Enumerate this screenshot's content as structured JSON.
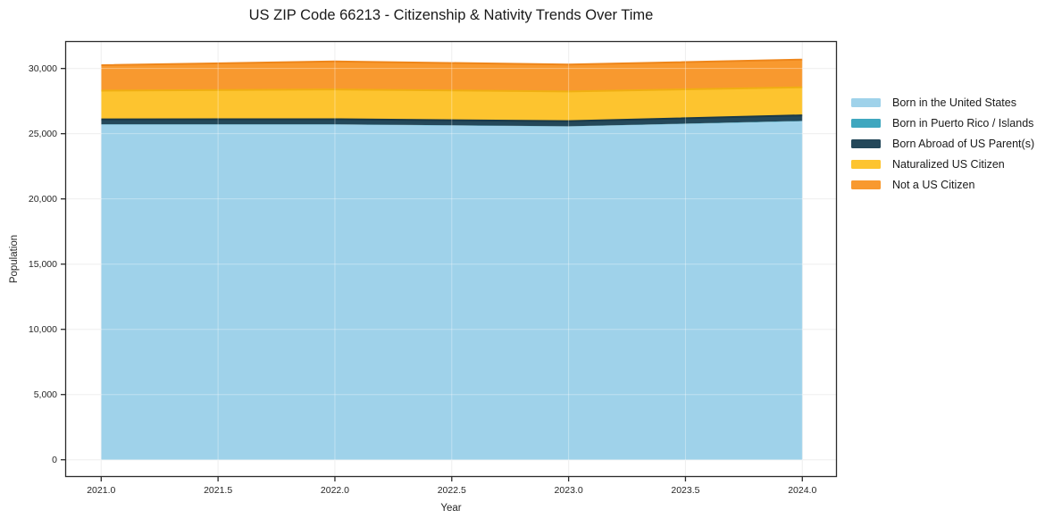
{
  "chart_data": {
    "type": "area",
    "stacked": true,
    "title": "US ZIP Code 66213 - Citizenship & Nativity Trends Over Time",
    "xlabel": "Year",
    "ylabel": "Population",
    "x": [
      2021,
      2022,
      2023,
      2024
    ],
    "series": [
      {
        "name": "Born in the United States",
        "color": "#9FD2EA",
        "edge": "#82BEDD",
        "values": [
          25700,
          25700,
          25550,
          25950
        ]
      },
      {
        "name": "Born in Puerto Rico / Islands",
        "color": "#3FA7BF",
        "edge": "#2E93AB",
        "values": [
          20,
          20,
          20,
          30
        ]
      },
      {
        "name": "Born Abroad of US Parent(s)",
        "color": "#24485A",
        "edge": "#1A3948",
        "values": [
          380,
          390,
          390,
          430
        ]
      },
      {
        "name": "Naturalized US Citizen",
        "color": "#FDC42F",
        "edge": "#F0AF12",
        "values": [
          2200,
          2280,
          2280,
          2150
        ]
      },
      {
        "name": "Not a US Citizen",
        "color": "#F8992F",
        "edge": "#EE861B",
        "values": [
          1950,
          2150,
          2060,
          2120
        ]
      }
    ],
    "totals": [
      30250,
      30540,
      30300,
      30680
    ],
    "xticks": {
      "values": [
        2021.0,
        2021.5,
        2022.0,
        2022.5,
        2023.0,
        2023.5,
        2024.0
      ],
      "labels": [
        "2021.0",
        "2021.5",
        "2022.0",
        "2022.5",
        "2023.0",
        "2023.5",
        "2024.0"
      ]
    },
    "yticks": {
      "values": [
        0,
        5000,
        10000,
        15000,
        20000,
        25000,
        30000
      ],
      "labels": [
        "0",
        "5,000",
        "10,000",
        "15,000",
        "20,000",
        "25,000",
        "30,000"
      ]
    },
    "xlim": [
      2020.846,
      2024.148
    ],
    "ylim": [
      -1320,
      32100
    ],
    "grid": true,
    "legend_position": "right",
    "colors": {
      "spine": "#2b2b2b",
      "grid_under": "#e9e9e9",
      "grid_over": "rgba(255,255,255,0.35)",
      "tick_text": "#262626",
      "background": "#ffffff"
    }
  }
}
